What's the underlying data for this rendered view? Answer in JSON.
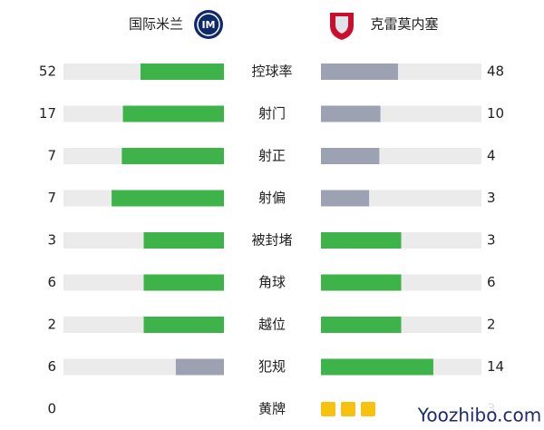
{
  "header": {
    "home": "国际米兰",
    "away": "克雷莫内塞"
  },
  "colors": {
    "leading": "#3db349",
    "trailing": "#9ca2b2",
    "track": "#ebebeb"
  },
  "stats": [
    {
      "label": "控球率",
      "home": 52,
      "away": 48
    },
    {
      "label": "射门",
      "home": 17,
      "away": 10
    },
    {
      "label": "射正",
      "home": 7,
      "away": 4
    },
    {
      "label": "射偏",
      "home": 7,
      "away": 3
    },
    {
      "label": "被封堵",
      "home": 3,
      "away": 3
    },
    {
      "label": "角球",
      "home": 6,
      "away": 6
    },
    {
      "label": "越位",
      "home": 2,
      "away": 2
    },
    {
      "label": "犯规",
      "home": 6,
      "away": 14
    },
    {
      "label": "黄牌",
      "home": 0,
      "away": 3,
      "icon_color": "#f6c20f"
    }
  ],
  "watermark": "Yoozhibo.com"
}
